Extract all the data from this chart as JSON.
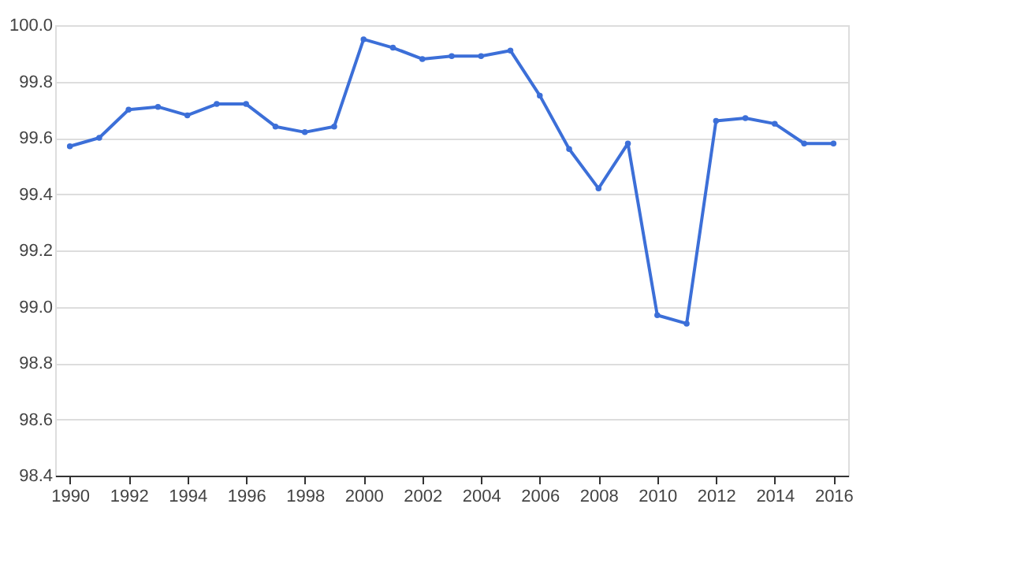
{
  "chart_data": {
    "type": "line",
    "x": [
      1990,
      1991,
      1992,
      1993,
      1994,
      1995,
      1996,
      1997,
      1998,
      1999,
      2000,
      2001,
      2002,
      2003,
      2004,
      2005,
      2006,
      2007,
      2008,
      2009,
      2010,
      2011,
      2012,
      2013,
      2014,
      2015,
      2016
    ],
    "series": [
      {
        "color": "#3c6fd8",
        "values": [
          99.57,
          99.6,
          99.7,
          99.71,
          99.68,
          99.72,
          99.72,
          99.64,
          99.62,
          99.64,
          99.95,
          99.92,
          99.88,
          99.89,
          99.89,
          99.91,
          99.75,
          99.56,
          99.42,
          99.58,
          98.97,
          98.94,
          99.66,
          99.67,
          99.65,
          99.58,
          99.58
        ]
      }
    ],
    "xlim": [
      1989.5,
      2016.5
    ],
    "xticks": [
      1990,
      1992,
      1994,
      1996,
      1998,
      2000,
      2002,
      2004,
      2006,
      2008,
      2010,
      2012,
      2014,
      2016
    ],
    "ylim": [
      98.4,
      100.0
    ],
    "yticks": [
      98.4,
      98.6,
      98.8,
      {
        "value": 99,
        "label": "99.0"
      },
      99.2,
      99.4,
      99.6,
      99.8,
      {
        "value": 100,
        "label": "100.0"
      }
    ],
    "grid": "y",
    "marker": "circle",
    "line_style": "solid",
    "legend": false
  }
}
